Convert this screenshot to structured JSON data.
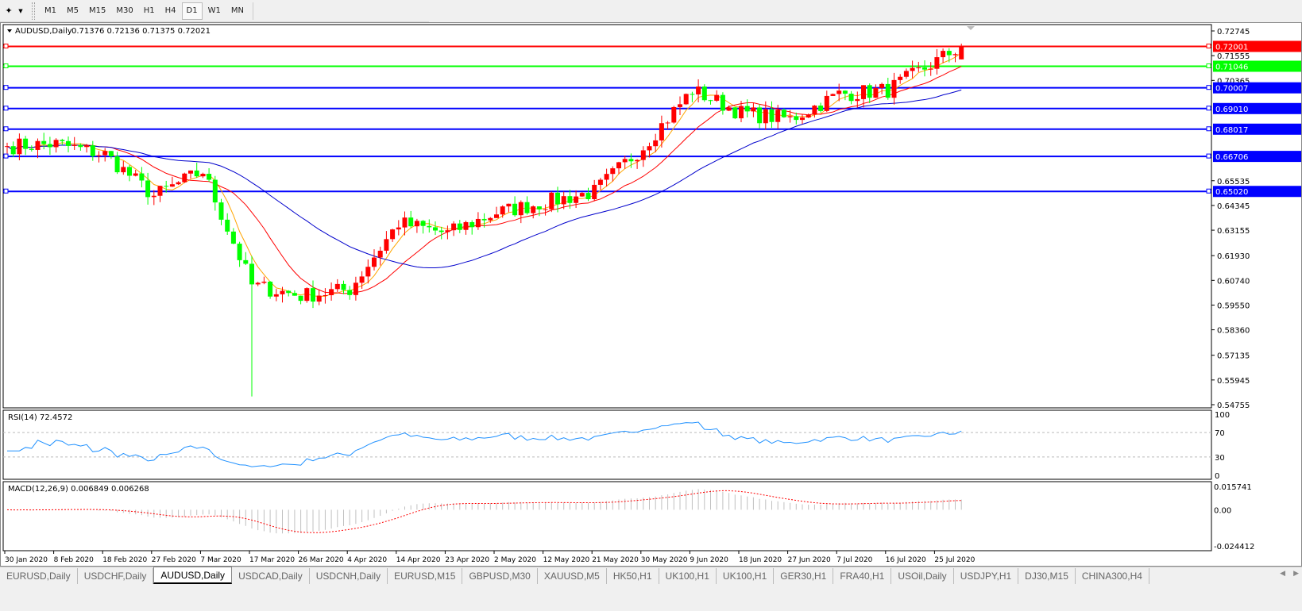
{
  "toolbar": {
    "tool_icon": "cursor-tools-icon",
    "timeframes": [
      {
        "label": "M1"
      },
      {
        "label": "M5"
      },
      {
        "label": "M15"
      },
      {
        "label": "M30"
      },
      {
        "label": "H1"
      },
      {
        "label": "H4"
      },
      {
        "label": "D1",
        "active": true
      },
      {
        "label": "W1"
      },
      {
        "label": "MN"
      }
    ]
  },
  "chart_header": {
    "symbol": "AUDUSD,Daily",
    "ohlc": "0.71376 0.72136 0.71375 0.72021"
  },
  "rsi_header": "RSI(14) 72.4572",
  "macd_header": "MACD(12,26,9) 0.006849 0.006268",
  "colors": {
    "bull": "#ff0000",
    "bear": "#00ff00",
    "fast_ma": "#ffa500",
    "mid_ma": "#ff0000",
    "slow_ma": "#0000cc",
    "rsi": "#1e90ff",
    "macd_hist": "#c0c0c0",
    "macd_signal": "#ff0000"
  },
  "chart_data": {
    "type": "candlestick",
    "symbol": "AUDUSD",
    "timeframe": "Daily",
    "last_bar": {
      "open": 0.71376,
      "high": 0.72136,
      "low": 0.71375,
      "close": 0.72021
    },
    "price_axis_ticks": [
      "0.72745",
      "0.71555",
      "0.70365",
      "0.65535",
      "0.64345",
      "0.63155",
      "0.61930",
      "0.60740",
      "0.59550",
      "0.58360",
      "0.57135",
      "0.55945",
      "0.54755"
    ],
    "price_range": [
      0.54755,
      0.72745
    ],
    "date_labels": [
      "30 Jan 2020",
      "8 Feb 2020",
      "18 Feb 2020",
      "27 Feb 2020",
      "7 Mar 2020",
      "17 Mar 2020",
      "26 Mar 2020",
      "4 Apr 2020",
      "14 Apr 2020",
      "23 Apr 2020",
      "2 May 2020",
      "12 May 2020",
      "21 May 2020",
      "30 May 2020",
      "9 Jun 2020",
      "18 Jun 2020",
      "27 Jun 2020",
      "7 Jul 2020",
      "16 Jul 2020",
      "25 Jul 2020"
    ],
    "approx_close_at_date_labels": [
      0.672,
      0.673,
      0.668,
      0.648,
      0.66,
      0.605,
      0.6,
      0.603,
      0.635,
      0.63,
      0.64,
      0.645,
      0.65,
      0.672,
      0.699,
      0.688,
      0.685,
      0.697,
      0.699,
      0.713
    ],
    "horizontal_levels": [
      {
        "price": "0.72001",
        "color": "#ff0000"
      },
      {
        "price": "0.71046",
        "color": "#00ff00"
      },
      {
        "price": "0.70007",
        "color": "#0000ff"
      },
      {
        "price": "0.69010",
        "color": "#0000ff"
      },
      {
        "price": "0.68017",
        "color": "#0000ff"
      },
      {
        "price": "0.66706",
        "color": "#0000ff"
      },
      {
        "price": "0.65020",
        "color": "#0000ff"
      }
    ],
    "rsi": {
      "value": 72.4572,
      "axis_ticks": [
        "100",
        "70",
        "30",
        "0"
      ],
      "levels": [
        70,
        30
      ]
    },
    "macd": {
      "main": 0.006849,
      "signal": 0.006268,
      "axis_ticks": [
        "0.015741",
        "0.00",
        "-0.024412"
      ],
      "range": [
        -0.024412,
        0.015741
      ]
    }
  },
  "tabs": [
    {
      "label": "EURUSD,Daily"
    },
    {
      "label": "USDCHF,Daily"
    },
    {
      "label": "AUDUSD,Daily",
      "active": true
    },
    {
      "label": "USDCAD,Daily"
    },
    {
      "label": "USDCNH,Daily"
    },
    {
      "label": "EURUSD,M15"
    },
    {
      "label": "GBPUSD,M30"
    },
    {
      "label": "XAUUSD,M5"
    },
    {
      "label": "HK50,H1"
    },
    {
      "label": "UK100,H1"
    },
    {
      "label": "UK100,H1"
    },
    {
      "label": "GER30,H1"
    },
    {
      "label": "FRA40,H1"
    },
    {
      "label": "USOil,Daily"
    },
    {
      "label": "USDJPY,H1"
    },
    {
      "label": "DJ30,M15"
    },
    {
      "label": "CHINA300,H4"
    }
  ]
}
